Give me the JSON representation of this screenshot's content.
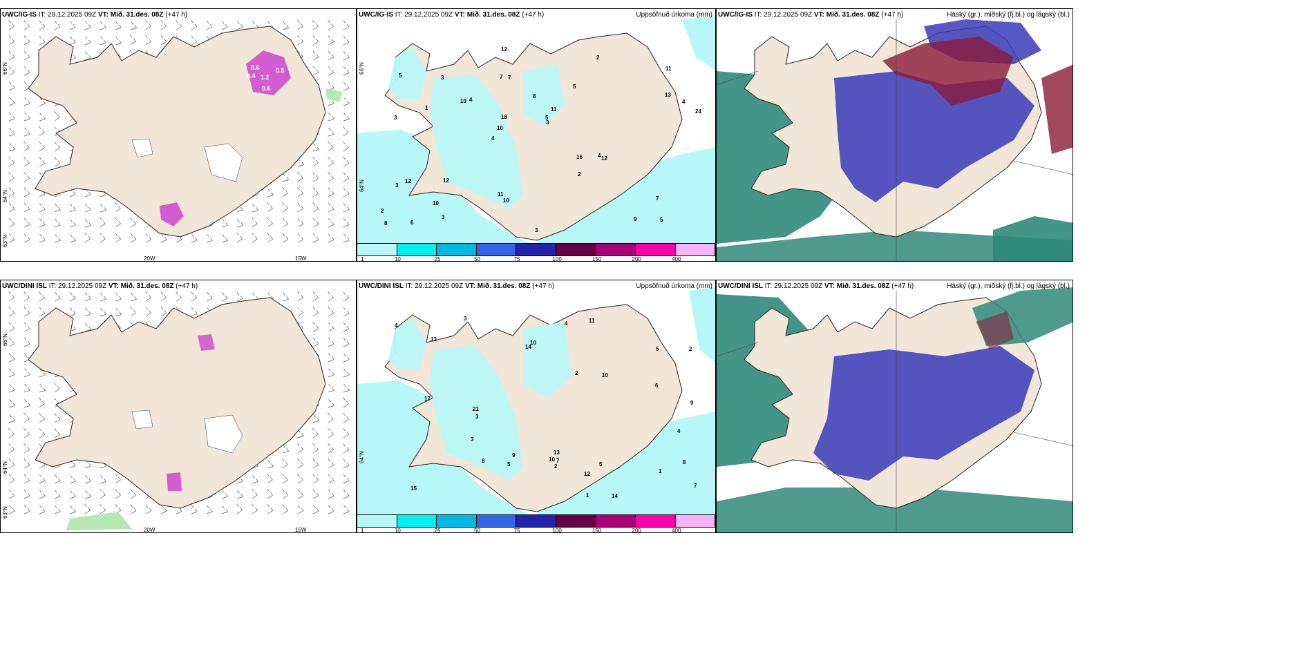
{
  "panels": [
    {
      "id": "r1c1",
      "model": "UWC/IG-IS",
      "it_label": "IT:",
      "it": "29.12.2025 09Z",
      "vt_label": "VT:",
      "vt": "Mið. 31.des. 08Z",
      "lead": "(+47 h)",
      "right_title": "",
      "lat_labels": [
        "66°N",
        "64°N",
        "63°N"
      ],
      "lon_labels": [
        "20W",
        "15W"
      ]
    },
    {
      "id": "r1c2",
      "model": "UWC/IG-IS",
      "it_label": "IT:",
      "it": "29.12.2025 09Z",
      "vt_label": "VT:",
      "vt": "Mið. 31.des. 08Z",
      "lead": "(+47 h)",
      "right_title": "Uppsöfnuð úrkoma (mm)",
      "lat_labels": [
        "66°N",
        "64°N"
      ],
      "lon_labels": []
    },
    {
      "id": "r1c3",
      "model": "UWC/IG-IS",
      "it_label": "IT:",
      "it": "29.12.2025 09Z",
      "vt_label": "VT:",
      "vt": "Mið. 31.des. 08Z",
      "lead": "(+47 h)",
      "right_title": "Háský (gr.), miðský (fj.bl.) og lágský (bl.)",
      "lat_labels": [],
      "lon_labels": []
    },
    {
      "id": "r2c1",
      "model": "UWC/DINI ISL",
      "it_label": "IT:",
      "it": "29.12.2025 09Z",
      "vt_label": "VT:",
      "vt": "Mið. 31.des. 08Z",
      "lead": "(+47 h)",
      "right_title": "",
      "lat_labels": [
        "66°N",
        "64°N",
        "63°N"
      ],
      "lon_labels": [
        "20W",
        "15W"
      ]
    },
    {
      "id": "r2c2",
      "model": "UWC/DINI ISL",
      "it_label": "IT:",
      "it": "29.12.2025 09Z",
      "vt_label": "VT:",
      "vt": "Mið. 31.des. 08Z",
      "lead": "(+47 h)",
      "right_title": "Uppsöfnuð úrkoma (mm)",
      "lat_labels": [
        "64°N"
      ],
      "lon_labels": []
    },
    {
      "id": "r2c3",
      "model": "UWC/DINI ISL",
      "it_label": "IT:",
      "it": "29.12.2025 09Z",
      "vt_label": "VT:",
      "vt": "Mið. 31.des. 08Z",
      "lead": "(+47 h)",
      "right_title": "Háský (gr.), miðský (fj.bl.) og lágský (bl.)",
      "lat_labels": [],
      "lon_labels": []
    }
  ],
  "precip_colorbar": {
    "labels": [
      "1",
      "10",
      "25",
      "50",
      "75",
      "100",
      "150",
      "200",
      "400"
    ],
    "colors": [
      "#b8f7f7",
      "#00efef",
      "#00b8e6",
      "#3366e6",
      "#2222aa",
      "#660044",
      "#aa0077",
      "#ff00aa",
      "#f7b3f7"
    ]
  },
  "colors": {
    "land": "#f2e6d9",
    "precip_light": "#b8f7f7",
    "cloud_low": "#2f8a7a",
    "cloud_mid": "#3a3ab8",
    "cloud_high": "#8a1a3a",
    "snow": "#cc44cc"
  },
  "precip_values_top": [
    "5",
    "3",
    "11",
    "4",
    "5",
    "6",
    "7",
    "8",
    "12",
    "4",
    "2",
    "10",
    "7",
    "11",
    "12",
    "5",
    "12",
    "24",
    "16",
    "13",
    "10",
    "11",
    "18",
    "3",
    "2",
    "12",
    "9",
    "7",
    "4",
    "3",
    "10",
    "1",
    "2",
    "3",
    "4",
    "5",
    "8",
    "10",
    "3",
    "3"
  ],
  "precip_values_bottom": [
    "1",
    "8",
    "13",
    "4",
    "5",
    "10",
    "14",
    "7",
    "13",
    "12",
    "17",
    "21",
    "11",
    "10",
    "9",
    "15",
    "14",
    "5",
    "8",
    "3",
    "2",
    "1",
    "3",
    "4",
    "5",
    "6",
    "10",
    "4",
    "3",
    "2",
    "7",
    "9",
    "2"
  ],
  "snow_labels_top": [
    "0.6",
    "0.4",
    "1.2",
    "0.5",
    "0.6"
  ]
}
